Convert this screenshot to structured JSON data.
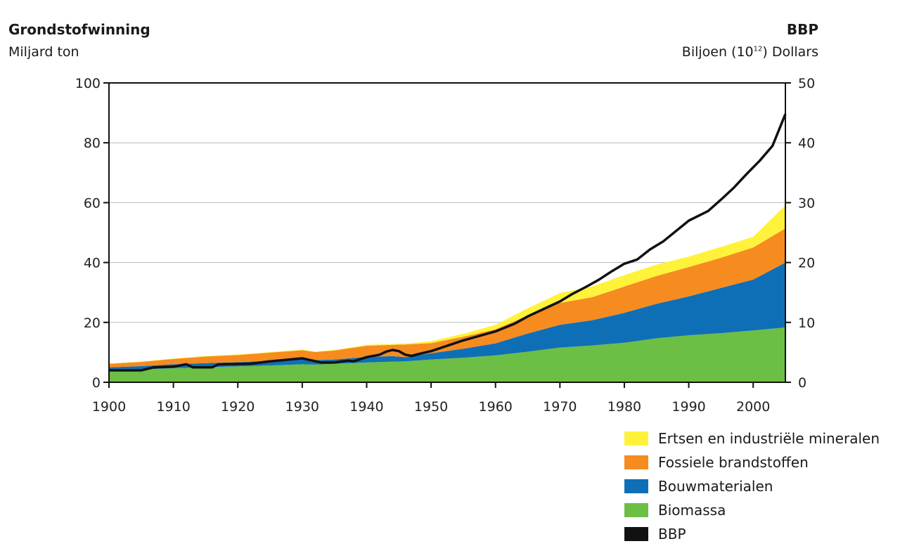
{
  "left_axis": {
    "title": "Grondstofwinning",
    "unit": "Miljard ton"
  },
  "right_axis": {
    "title": "BBP",
    "unit_prefix": "Biljoen (10",
    "unit_exp": "12",
    "unit_suffix": ") Dollars"
  },
  "chart_data": {
    "type": "area",
    "grid": true,
    "x": [
      1900,
      1905,
      1910,
      1915,
      1920,
      1925,
      1930,
      1932,
      1935,
      1940,
      1944,
      1946,
      1950,
      1955,
      1960,
      1965,
      1970,
      1975,
      1980,
      1985,
      1990,
      1995,
      2000,
      2005
    ],
    "x_ticks": [
      1900,
      1910,
      1920,
      1930,
      1940,
      1950,
      1960,
      1970,
      1980,
      1990,
      2000
    ],
    "xlim": [
      1900,
      2005
    ],
    "ylim": [
      0,
      100
    ],
    "y_ticks": [
      0,
      20,
      40,
      60,
      80,
      100
    ],
    "y2lim": [
      0,
      50
    ],
    "y2_ticks": [
      0,
      10,
      20,
      30,
      40,
      50
    ],
    "stacked": true,
    "series": [
      {
        "name": "Biomassa",
        "color": "#6cbe45",
        "values": [
          4.0,
          4.3,
          4.7,
          5.0,
          5.3,
          5.6,
          6.0,
          5.9,
          6.2,
          6.6,
          6.9,
          7.0,
          7.6,
          8.2,
          9.0,
          10.2,
          11.6,
          12.3,
          13.2,
          14.7,
          15.7,
          16.4,
          17.3,
          18.3
        ]
      },
      {
        "name": "Bouwmaterialen",
        "color": "#0f6fb6",
        "values": [
          1.0,
          1.1,
          1.3,
          1.4,
          1.4,
          1.6,
          1.7,
          1.5,
          1.4,
          1.9,
          1.8,
          1.4,
          2.1,
          3.0,
          4.0,
          6.1,
          7.6,
          8.4,
          10.0,
          11.5,
          13.0,
          15.1,
          17.0,
          21.7
        ]
      },
      {
        "name": "Fossiele brandstoffen",
        "color": "#f68b1f",
        "values": [
          1.2,
          1.4,
          1.8,
          2.2,
          2.4,
          2.7,
          3.0,
          2.7,
          3.0,
          3.7,
          3.8,
          4.2,
          3.4,
          4.0,
          4.7,
          6.0,
          7.3,
          7.7,
          8.8,
          9.3,
          9.8,
          10.1,
          10.7,
          11.4
        ]
      },
      {
        "name": "Ertsen en industriële mineralen",
        "color": "#fff23a",
        "values": [
          0.1,
          0.1,
          0.1,
          0.2,
          0.2,
          0.2,
          0.2,
          0.2,
          0.2,
          0.3,
          0.3,
          0.3,
          0.6,
          1.0,
          1.5,
          2.4,
          3.3,
          3.6,
          3.8,
          3.8,
          3.5,
          3.6,
          3.6,
          7.7
        ]
      }
    ],
    "line_series": {
      "name": "BBP",
      "color": "#111111",
      "axis": "right",
      "x": [
        1900,
        1905,
        1907,
        1910,
        1912,
        1913,
        1916,
        1917,
        1922,
        1925,
        1930,
        1933,
        1935,
        1937,
        1938,
        1940,
        1942,
        1943,
        1944,
        1945,
        1946,
        1947,
        1948,
        1950,
        1955,
        1960,
        1963,
        1965,
        1968,
        1970,
        1972,
        1974,
        1976,
        1978,
        1980,
        1982,
        1984,
        1986,
        1990,
        1993,
        1995,
        1997,
        1999,
        2001,
        2003,
        2005
      ],
      "values": [
        2.0,
        2.0,
        2.5,
        2.6,
        3.0,
        2.5,
        2.5,
        3.0,
        3.1,
        3.5,
        4.0,
        3.3,
        3.3,
        3.6,
        3.5,
        4.2,
        4.6,
        5.1,
        5.4,
        5.2,
        4.6,
        4.4,
        4.7,
        5.2,
        7.0,
        8.5,
        9.8,
        11.0,
        12.5,
        13.5,
        14.8,
        15.9,
        17.1,
        18.5,
        19.8,
        20.5,
        22.2,
        23.5,
        27.0,
        28.6,
        30.5,
        32.5,
        34.8,
        37.0,
        39.5,
        44.8
      ]
    }
  },
  "legend": [
    {
      "label": "Ertsen en industriële mineralen",
      "color": "#fff23a"
    },
    {
      "label": "Fossiele brandstoffen",
      "color": "#f68b1f"
    },
    {
      "label": "Bouwmaterialen",
      "color": "#0f6fb6"
    },
    {
      "label": "Biomassa",
      "color": "#6cbe45"
    },
    {
      "label": "BBP",
      "color": "#111111"
    }
  ]
}
